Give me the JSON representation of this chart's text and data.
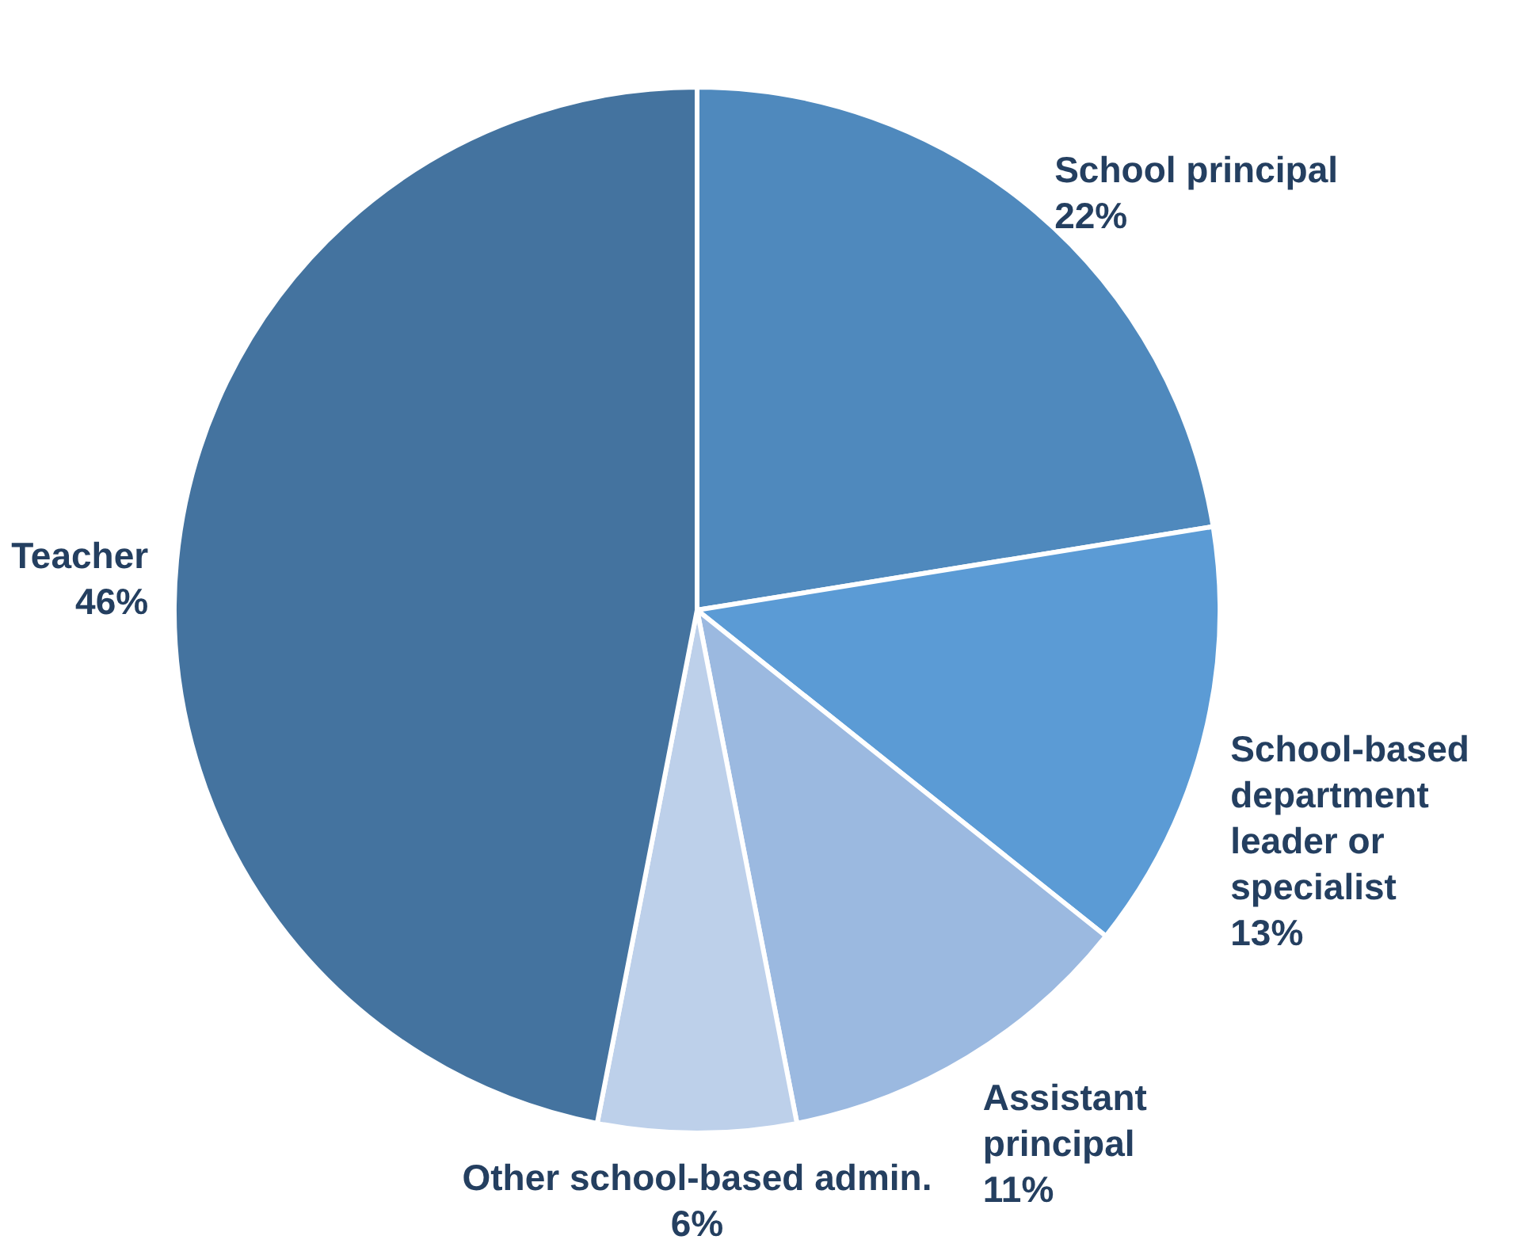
{
  "chart_data": {
    "type": "pie",
    "categories": [
      "School principal",
      "School-based\ndepartment\nleader or\nspecialist",
      "Assistant\nprincipal",
      "Other school-based admin.",
      "Teacher"
    ],
    "values": [
      22,
      13,
      11,
      6,
      46
    ],
    "value_labels": [
      "22%",
      "13%",
      "11%",
      "6%",
      "46%"
    ],
    "colors": [
      "#4f89bd",
      "#5b9bd5",
      "#9bb9e0",
      "#bdd0ea",
      "#44739f"
    ],
    "legend": false
  }
}
